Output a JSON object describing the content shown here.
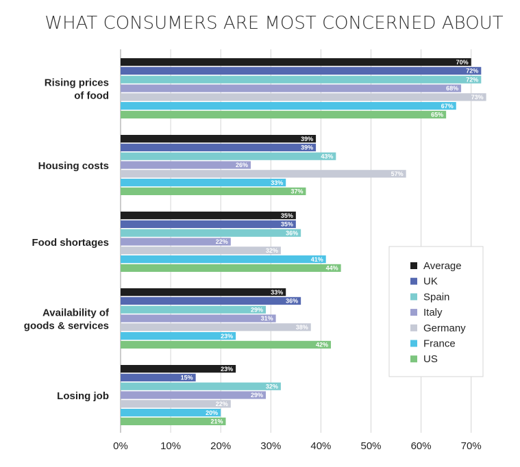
{
  "chart_data": {
    "type": "bar",
    "orientation": "horizontal",
    "title": "WHAT CONSUMERS ARE MOST CONCERNED ABOUT",
    "categories": [
      [
        "Rising prices",
        "of food"
      ],
      [
        "Housing costs"
      ],
      [
        "Food shortages"
      ],
      [
        "Availability of",
        "goods & services"
      ],
      [
        "Losing job"
      ]
    ],
    "series": [
      {
        "name": "Average",
        "color": "#1e1e1e",
        "values": [
          70,
          39,
          35,
          33,
          23
        ]
      },
      {
        "name": "UK",
        "color": "#5468b0",
        "values": [
          72,
          39,
          35,
          36,
          15
        ]
      },
      {
        "name": "Spain",
        "color": "#7ccccf",
        "values": [
          72,
          43,
          36,
          29,
          32
        ]
      },
      {
        "name": "Italy",
        "color": "#9c9fcf",
        "values": [
          68,
          26,
          22,
          31,
          29
        ]
      },
      {
        "name": "Germany",
        "color": "#c6cad6",
        "values": [
          73,
          57,
          32,
          38,
          22
        ]
      },
      {
        "name": "France",
        "color": "#4dc3e6",
        "values": [
          67,
          33,
          41,
          23,
          20
        ]
      },
      {
        "name": "US",
        "color": "#7dc57e",
        "values": [
          65,
          37,
          44,
          42,
          21
        ]
      }
    ],
    "value_suffix": "%",
    "xlim": [
      0,
      70
    ],
    "xticks": [
      0,
      10,
      20,
      30,
      40,
      50,
      60,
      70
    ],
    "grid": true,
    "legend_position": "right"
  }
}
